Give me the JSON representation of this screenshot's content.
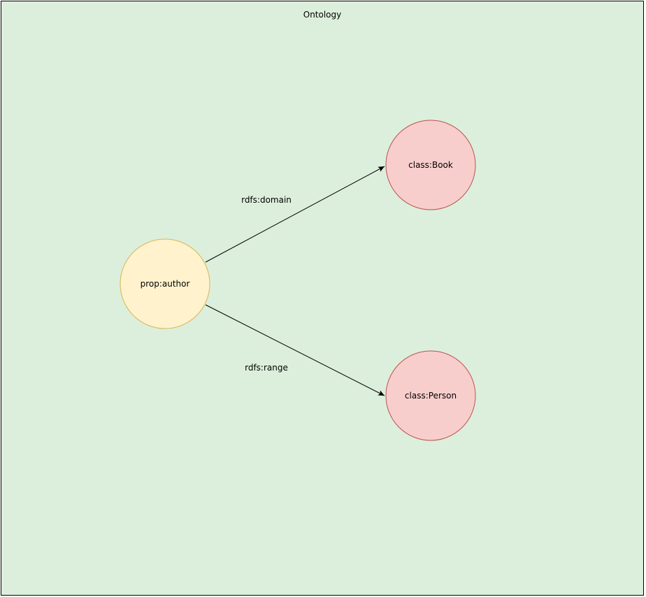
{
  "container": {
    "title": "Ontology",
    "fill": "#dcefdc",
    "stroke": "#000000"
  },
  "nodes": {
    "property": {
      "label": "prop:author",
      "fill": "#fff2cc",
      "stroke": "#d6b656"
    },
    "domain_class": {
      "label": "class:Book",
      "fill": "#f8cecc",
      "stroke": "#b85450"
    },
    "range_class": {
      "label": "class:Person",
      "fill": "#f8cecc",
      "stroke": "#b85450"
    }
  },
  "edges": {
    "domain": {
      "label": "rdfs:domain",
      "from": "prop:author",
      "to": "class:Book"
    },
    "range": {
      "label": "rdfs:range",
      "from": "prop:author",
      "to": "class:Person"
    }
  }
}
